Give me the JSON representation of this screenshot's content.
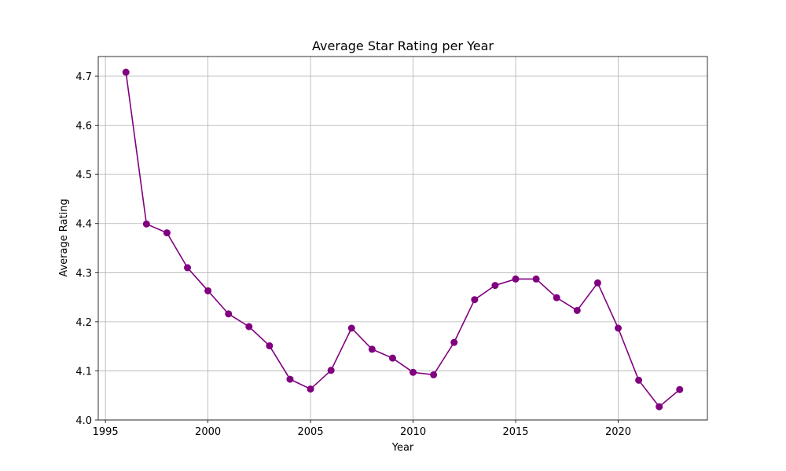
{
  "chart_data": {
    "type": "line",
    "title": "Average Star Rating per Year",
    "xlabel": "Year",
    "ylabel": "Average Rating",
    "xlim": [
      1994.65,
      2024.35
    ],
    "ylim": [
      4.0,
      4.74
    ],
    "grid": true,
    "line_color": "#800080",
    "marker": "circle",
    "x_ticks": [
      1995,
      2000,
      2005,
      2010,
      2015,
      2020
    ],
    "y_ticks": [
      4.0,
      4.1,
      4.2,
      4.3,
      4.4,
      4.5,
      4.6,
      4.7
    ],
    "x_tick_labels": [
      "1995",
      "2000",
      "2005",
      "2010",
      "2015",
      "2020"
    ],
    "y_tick_labels": [
      "4.0",
      "4.1",
      "4.2",
      "4.3",
      "4.4",
      "4.5",
      "4.6",
      "4.7"
    ],
    "series": [
      {
        "x": [
          1996,
          1997,
          1998,
          1999,
          2000,
          2001,
          2002,
          2003,
          2004,
          2005,
          2006,
          2007,
          2008,
          2009,
          2010,
          2011,
          2012,
          2013,
          2014,
          2015,
          2016,
          2017,
          2018,
          2019,
          2020,
          2021,
          2022,
          2023
        ],
        "values": [
          4.708,
          4.399,
          4.381,
          4.31,
          4.263,
          4.216,
          4.19,
          4.151,
          4.083,
          4.063,
          4.101,
          4.187,
          4.144,
          4.126,
          4.097,
          4.092,
          4.158,
          4.245,
          4.274,
          4.287,
          4.287,
          4.249,
          4.223,
          4.279,
          4.187,
          4.081,
          4.027,
          4.062
        ]
      }
    ]
  }
}
